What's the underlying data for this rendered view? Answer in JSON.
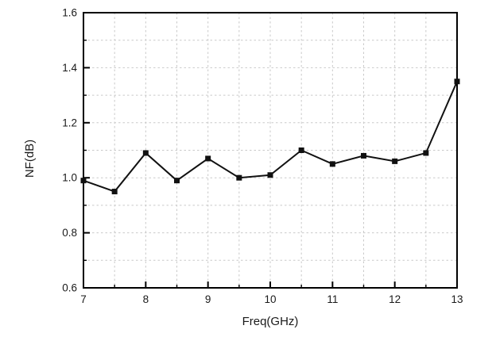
{
  "chart_data": {
    "type": "line",
    "title": "",
    "xlabel": "Freq(GHz)",
    "ylabel": "NF(dB)",
    "x": [
      7,
      7.5,
      8,
      8.5,
      9,
      9.5,
      10,
      10.5,
      11,
      11.5,
      12,
      12.5,
      13
    ],
    "series": [
      {
        "name": "NF",
        "values": [
          0.99,
          0.95,
          1.09,
          0.99,
          1.07,
          1.0,
          1.01,
          1.1,
          1.05,
          1.08,
          1.06,
          1.09,
          1.35
        ]
      }
    ],
    "xlim": [
      7,
      13
    ],
    "ylim": [
      0.6,
      1.6
    ],
    "x_major_ticks": [
      7,
      8,
      9,
      10,
      11,
      12,
      13
    ],
    "x_tick_labels": [
      "7",
      "8",
      "9",
      "10",
      "11",
      "12",
      "13"
    ],
    "x_minor_step": 0.5,
    "y_major_ticks": [
      0.6,
      0.8,
      1.0,
      1.2,
      1.4,
      1.6
    ],
    "y_tick_labels": [
      "0.6",
      "0.8",
      "1.0",
      "1.2",
      "1.4",
      "1.6"
    ],
    "y_minor_step": 0.1,
    "grid": "on",
    "grid_style": "dashed",
    "legend_position": "none",
    "marker": "filled-square",
    "colors": {
      "line": "#111111",
      "marker": "#111111",
      "grid": "#c9c9c9",
      "frame": "#000000",
      "background": "#ffffff",
      "text": "#1a1a1a"
    }
  }
}
